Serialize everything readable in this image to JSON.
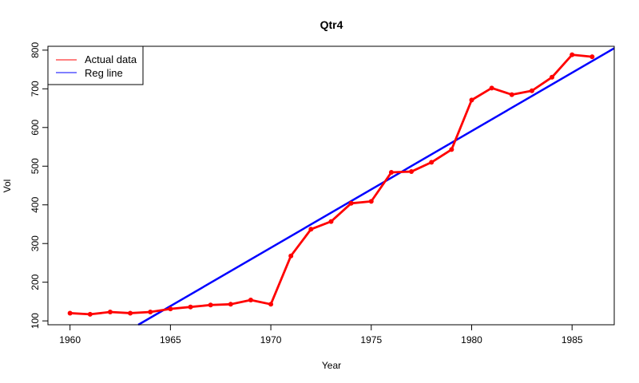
{
  "chart_data": {
    "type": "line",
    "title": "Qtr4",
    "xlabel": "Year",
    "ylabel": "Vol",
    "xlim": [
      1958.9,
      1987.1
    ],
    "ylim": [
      90,
      810
    ],
    "x_ticks": [
      1960,
      1965,
      1970,
      1975,
      1980,
      1985
    ],
    "y_ticks": [
      100,
      200,
      300,
      400,
      500,
      600,
      700,
      800
    ],
    "legend": {
      "position": "top-left",
      "entries": [
        "Actual data",
        "Reg line"
      ]
    },
    "series": [
      {
        "name": "Actual data",
        "color": "#ff0000",
        "x": [
          1960,
          1961,
          1962,
          1963,
          1964,
          1965,
          1966,
          1967,
          1968,
          1969,
          1970,
          1971,
          1972,
          1973,
          1974,
          1975,
          1976,
          1977,
          1978,
          1979,
          1980,
          1981,
          1982,
          1983,
          1984,
          1985,
          1986
        ],
        "values": [
          120,
          117,
          123,
          120,
          123,
          131,
          136,
          141,
          143,
          154,
          143,
          268,
          337,
          357,
          404,
          409,
          484,
          486,
          510,
          543,
          671,
          702,
          685,
          695,
          730,
          788,
          783
        ]
      },
      {
        "name": "Reg line",
        "color": "#0000ff",
        "x": [
          1963.4,
          1987.1
        ],
        "values": [
          90,
          805
        ]
      }
    ]
  }
}
